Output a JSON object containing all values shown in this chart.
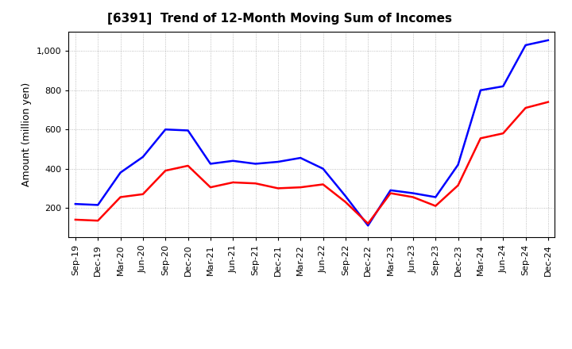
{
  "title": "[6391]  Trend of 12-Month Moving Sum of Incomes",
  "ylabel": "Amount (million yen)",
  "xlabels": [
    "Sep-19",
    "Dec-19",
    "Mar-20",
    "Jun-20",
    "Sep-20",
    "Dec-20",
    "Mar-21",
    "Jun-21",
    "Sep-21",
    "Dec-21",
    "Mar-22",
    "Jun-22",
    "Sep-22",
    "Dec-22",
    "Mar-23",
    "Jun-23",
    "Sep-23",
    "Dec-23",
    "Mar-24",
    "Jun-24",
    "Sep-24",
    "Dec-24"
  ],
  "ordinary_income": [
    220,
    215,
    380,
    460,
    600,
    595,
    425,
    440,
    425,
    435,
    455,
    400,
    260,
    110,
    290,
    275,
    255,
    420,
    800,
    820,
    1030,
    1055
  ],
  "net_income": [
    140,
    135,
    255,
    270,
    390,
    415,
    305,
    330,
    325,
    300,
    305,
    320,
    230,
    120,
    275,
    255,
    210,
    315,
    555,
    580,
    710,
    740
  ],
  "ordinary_income_color": "#0000FF",
  "net_income_color": "#FF0000",
  "ylim_min": 50,
  "ylim_max": 1100,
  "yticks": [
    200,
    400,
    600,
    800,
    1000
  ],
  "ytick_labels": [
    "200",
    "400",
    "600",
    "800",
    "1,000"
  ],
  "background_color": "#FFFFFF",
  "grid_color": "#999999",
  "title_fontsize": 11,
  "label_fontsize": 9,
  "tick_fontsize": 8,
  "line_width": 1.8
}
